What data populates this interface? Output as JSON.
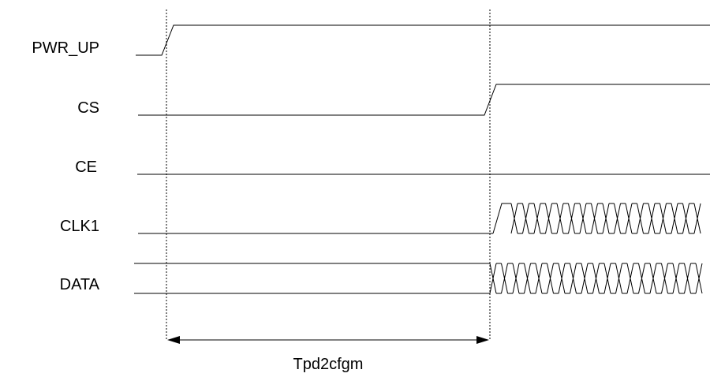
{
  "signals": [
    {
      "id": "pwr-up",
      "label": "PWR_UP"
    },
    {
      "id": "cs",
      "label": "CS"
    },
    {
      "id": "ce",
      "label": "CE"
    },
    {
      "id": "clk1",
      "label": "CLK1"
    },
    {
      "id": "data",
      "label": "DATA"
    }
  ],
  "timing": {
    "interval_label": "Tpd2cfgm"
  }
}
